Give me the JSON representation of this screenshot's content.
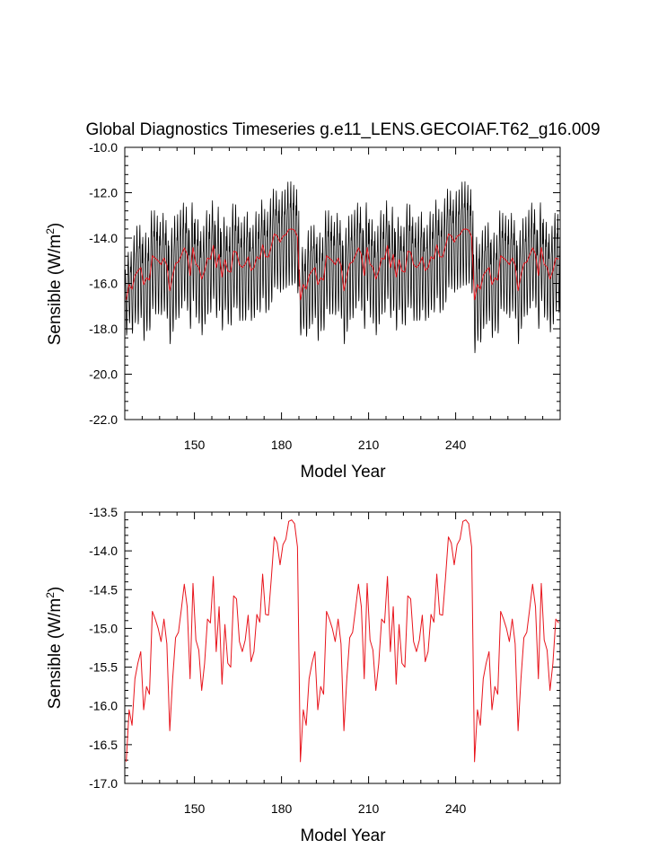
{
  "figure": {
    "title": "Global Diagnostics Timeseries g.e11_LENS.GECOIAF.T62_g16.009"
  },
  "chart_data": [
    {
      "type": "line",
      "title": "Global Diagnostics Timeseries g.e11_LENS.GECOIAF.T62_g16.009",
      "xlabel": "Model Year",
      "ylabel": "Sensible (W/m",
      "ylabel_superscript": "2",
      "ylabel_suffix": ")",
      "xlim": [
        126,
        276
      ],
      "ylim": [
        -22.0,
        -10.0
      ],
      "xticks": [
        150,
        180,
        210,
        240
      ],
      "xtick_labels": [
        "150",
        "180",
        "210",
        "240"
      ],
      "yticks": [
        -22.0,
        -20.0,
        -18.0,
        -16.0,
        -14.0,
        -12.0,
        -10.0
      ],
      "ytick_labels": [
        "-22.0",
        "-20.0",
        "-18.0",
        "-16.0",
        "-14.0",
        "-12.0",
        "-10.0"
      ],
      "grid": false,
      "series": [
        {
          "color": "#000000",
          "resolution": "monthly",
          "seasonal_cycle": [
            0.5,
            0.9,
            1.1,
            0.7,
            0.1,
            -0.5,
            -1.0,
            -1.3,
            -1.2,
            -0.6,
            0.2,
            0.6
          ],
          "amplitude_by_year": [
            1.2,
            1.3,
            1.5,
            1.6,
            1.8,
            1.7,
            1.9,
            1.8,
            1.7,
            1.8,
            1.9,
            1.8,
            1.7,
            1.8,
            1.8,
            1.8,
            1.9,
            1.9,
            1.9,
            1.8,
            1.8,
            1.9,
            1.8,
            1.8,
            1.8,
            1.9,
            1.9,
            1.8,
            1.9,
            1.8,
            1.8,
            1.7,
            1.9,
            1.8,
            1.7,
            1.8,
            1.8,
            1.9,
            1.9,
            1.9,
            1.8,
            1.9,
            1.8,
            1.7,
            1.7,
            1.8,
            1.8,
            1.8,
            1.9,
            1.8,
            1.9,
            1.8,
            1.8,
            1.7,
            1.8,
            1.8,
            1.9,
            1.9,
            1.8,
            1.9,
            1.2,
            1.5,
            1.6,
            1.8,
            1.8,
            1.7,
            1.9,
            1.8,
            1.7,
            1.8,
            1.9,
            1.8,
            1.7,
            1.8,
            1.8,
            1.8,
            1.9,
            1.9,
            1.9,
            1.8,
            1.8,
            1.9,
            1.8,
            1.8,
            1.8,
            1.9,
            1.9,
            1.8,
            1.9,
            1.8,
            1.8,
            1.7,
            1.9,
            1.8,
            1.7,
            1.8,
            1.8,
            1.9,
            1.9,
            1.9,
            1.8,
            1.9,
            1.8,
            1.7,
            1.7,
            1.8,
            1.8,
            1.8,
            1.9,
            1.8,
            1.9,
            1.8,
            1.8,
            1.7,
            1.8,
            1.8,
            1.9,
            1.9,
            1.8,
            1.9,
            1.8,
            1.9
          ]
        },
        {
          "color": "#e8141c",
          "resolution": "annual",
          "values_ref": "annual_mean"
        }
      ]
    },
    {
      "type": "line",
      "xlabel": "Model Year",
      "ylabel": "Sensible (W/m",
      "ylabel_superscript": "2",
      "ylabel_suffix": ")",
      "xlim": [
        126,
        276
      ],
      "ylim": [
        -17.0,
        -13.5
      ],
      "xticks": [
        150,
        180,
        210,
        240
      ],
      "xtick_labels": [
        "150",
        "180",
        "210",
        "240"
      ],
      "yticks": [
        -17.0,
        -16.5,
        -16.0,
        -15.5,
        -15.0,
        -14.5,
        -14.0,
        -13.5
      ],
      "ytick_labels": [
        "-17.0",
        "-16.5",
        "-16.0",
        "-15.5",
        "-15.0",
        "-14.5",
        "-14.0",
        "-13.5"
      ],
      "grid": false,
      "series": [
        {
          "color": "#e8141c",
          "resolution": "annual",
          "values_ref": "annual_mean"
        }
      ]
    }
  ],
  "annual_mean": {
    "x_start": 126.5,
    "x_step": 1,
    "values": [
      -16.72,
      -16.05,
      -16.25,
      -15.65,
      -15.45,
      -15.3,
      -16.05,
      -15.75,
      -15.85,
      -14.78,
      -14.88,
      -15.0,
      -15.17,
      -14.88,
      -15.2,
      -16.32,
      -15.65,
      -15.12,
      -15.05,
      -14.75,
      -14.43,
      -14.72,
      -15.65,
      -14.42,
      -15.15,
      -15.28,
      -15.8,
      -15.45,
      -14.88,
      -14.93,
      -14.33,
      -15.3,
      -14.72,
      -15.72,
      -14.95,
      -15.45,
      -15.5,
      -14.58,
      -14.62,
      -15.17,
      -15.3,
      -15.15,
      -14.83,
      -15.43,
      -15.3,
      -14.82,
      -14.92,
      -14.3,
      -14.82,
      -14.83,
      -14.35,
      -13.82,
      -13.9,
      -14.18,
      -13.92,
      -13.85,
      -13.62,
      -13.6,
      -13.65,
      -13.95,
      -16.72,
      -16.05,
      -16.25,
      -15.65,
      -15.45,
      -15.3,
      -16.05,
      -15.75,
      -15.85,
      -14.78,
      -14.88,
      -15.0,
      -15.17,
      -14.88,
      -15.2,
      -16.32,
      -15.65,
      -15.12,
      -15.05,
      -14.75,
      -14.43,
      -14.72,
      -15.65,
      -14.42,
      -15.15,
      -15.28,
      -15.8,
      -15.45,
      -14.88,
      -14.93,
      -14.33,
      -15.3,
      -14.72,
      -15.72,
      -14.95,
      -15.45,
      -15.5,
      -14.58,
      -14.62,
      -15.17,
      -15.3,
      -15.15,
      -14.83,
      -15.43,
      -15.3,
      -14.82,
      -14.92,
      -14.3,
      -14.82,
      -14.83,
      -14.35,
      -13.82,
      -13.9,
      -14.18,
      -13.92,
      -13.85,
      -13.62,
      -13.6,
      -13.65,
      -13.95,
      -16.72,
      -16.05,
      -16.25,
      -15.65,
      -15.45,
      -15.3,
      -16.05,
      -15.75,
      -15.85,
      -14.78,
      -14.88,
      -15.0,
      -15.17,
      -14.88,
      -15.2,
      -16.32,
      -15.65,
      -15.12,
      -15.05,
      -14.75,
      -14.43,
      -14.72,
      -15.65,
      -14.42,
      -15.15,
      -15.28,
      -15.8,
      -15.45,
      -14.88,
      -14.93
    ]
  }
}
